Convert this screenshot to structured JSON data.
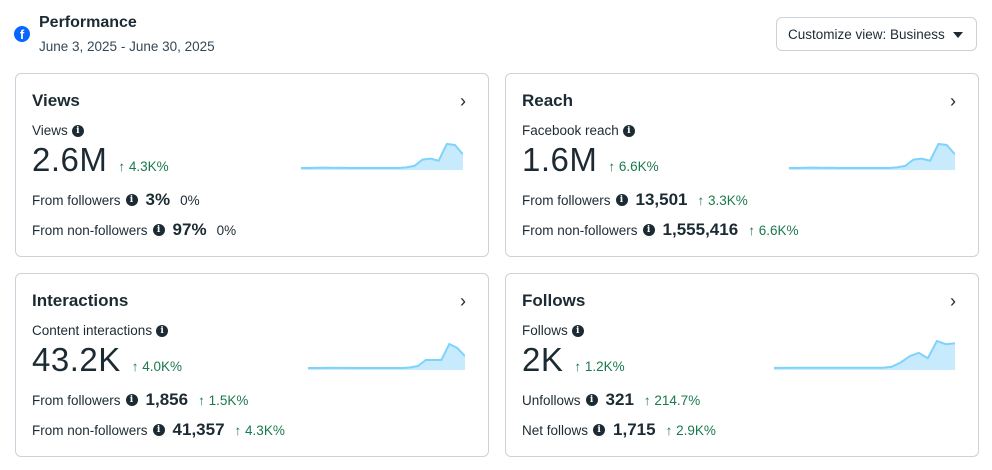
{
  "header": {
    "title": "Performance",
    "date_range": "June 3, 2025 - June 30, 2025",
    "customize_label": "Customize view: Business"
  },
  "colors": {
    "accent": "#0866ff",
    "positive": "#1b7a4d",
    "spark_line": "#7fd3fb",
    "spark_fill": "#c7ebfd"
  },
  "cards": [
    {
      "title": "Views",
      "metric_label": "Views",
      "value": "2.6M",
      "change": "↑ 4.3K%",
      "rows": [
        {
          "label": "From followers",
          "value": "3%",
          "change": "0%"
        },
        {
          "label": "From non-followers",
          "value": "97%",
          "change": "0%"
        }
      ],
      "spark": [
        1,
        1,
        1.2,
        1.3,
        1.1,
        1.2,
        1,
        1,
        1,
        1,
        1,
        1,
        1,
        1.5,
        3,
        9,
        10,
        8,
        24,
        23,
        14
      ]
    },
    {
      "title": "Reach",
      "metric_label": "Facebook reach",
      "value": "1.6M",
      "change": "↑ 6.6K%",
      "rows": [
        {
          "label": "From followers",
          "value": "13,501",
          "change": "↑ 3.3K%"
        },
        {
          "label": "From non-followers",
          "value": "1,555,416",
          "change": "↑ 6.6K%"
        }
      ],
      "spark": [
        1,
        1,
        1.2,
        1.3,
        1.1,
        1.2,
        1,
        1,
        1,
        1,
        1,
        1,
        1,
        1.5,
        3,
        9,
        10,
        8,
        24,
        23,
        14
      ]
    },
    {
      "title": "Interactions",
      "metric_label": "Content interactions",
      "value": "43.2K",
      "change": "↑ 4.0K%",
      "rows": [
        {
          "label": "From followers",
          "value": "1,856",
          "change": "↑ 1.5K%"
        },
        {
          "label": "From non-followers",
          "value": "41,357",
          "change": "↑ 4.3K%"
        }
      ],
      "spark": [
        1,
        1,
        1.1,
        1.2,
        1.1,
        1.1,
        1,
        1,
        1,
        1,
        1,
        1,
        1,
        1.5,
        3,
        9,
        9,
        9,
        25,
        21,
        13
      ]
    },
    {
      "title": "Follows",
      "metric_label": "Follows",
      "value": "2K",
      "change": "↑ 1.2K%",
      "rows": [
        {
          "label": "Unfollows",
          "value": "321",
          "change": "↑ 214.7%"
        },
        {
          "label": "Net follows",
          "value": "1,715",
          "change": "↑ 2.9K%"
        }
      ],
      "spark": [
        1,
        1,
        1.1,
        1.2,
        1.1,
        1.2,
        1.1,
        1.2,
        1.1,
        1.2,
        1.2,
        1.2,
        1.2,
        2,
        6,
        12,
        15,
        10,
        26,
        23,
        24
      ]
    }
  ]
}
